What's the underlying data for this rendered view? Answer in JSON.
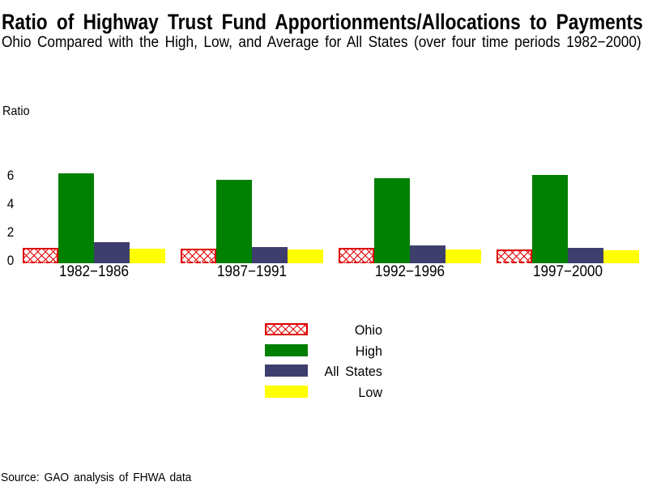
{
  "header": {
    "title": "Ratio of Highway Trust Fund Apportionments/Allocations to Payments",
    "subtitle": "Ohio Compared with the High, Low, and Average for All States (over four time periods 1982−2000)"
  },
  "chart_data": {
    "type": "bar",
    "title": "Ratio of Highway Trust Fund Apportionments/Allocations to Payments",
    "subtitle": "Ohio Compared with the High, Low, and Average for All States (over four time periods 1982−2000)",
    "ylabel": "Ratio",
    "xlabel": "",
    "categories": [
      "1982−1986",
      "1987−1991",
      "1992−1996",
      "1997−2000"
    ],
    "yticks": [
      0,
      2,
      4,
      6
    ],
    "ylim": [
      0,
      7
    ],
    "grid": false,
    "legend_position": "bottom-center",
    "series": [
      {
        "name": "Ohio",
        "values": [
          1.0,
          0.95,
          1.0,
          0.9
        ],
        "color": "#e00000",
        "style": "crosshatch"
      },
      {
        "name": "High",
        "values": [
          6.0,
          5.55,
          5.7,
          5.9
        ],
        "color": "#008000",
        "style": "solid"
      },
      {
        "name": "All States",
        "values": [
          1.4,
          1.1,
          1.2,
          1.0
        ],
        "color": "#3e3e6e",
        "style": "solid"
      },
      {
        "name": "Low",
        "values": [
          0.95,
          0.9,
          0.9,
          0.85
        ],
        "color": "#ffff00",
        "style": "solid"
      }
    ]
  },
  "source": {
    "text": "Source: GAO analysis of FHWA data"
  }
}
